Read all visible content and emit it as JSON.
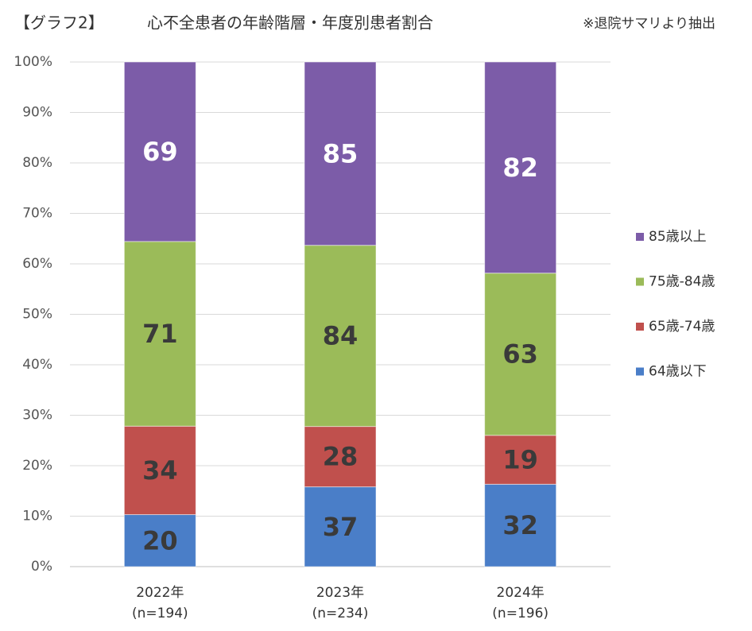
{
  "chart_data": {
    "type": "bar",
    "stacked_percent": true,
    "title_tag": "【グラフ2】",
    "title": "心不全患者の年齢階層・年度別患者割合",
    "note": "※退院サマリより抽出",
    "categories": [
      "2022年",
      "2023年",
      "2024年"
    ],
    "sample_sizes": [
      "(n=194)",
      "(n=234)",
      "(n=196)"
    ],
    "series": [
      {
        "name": "64歳以下",
        "color": "#4a7ec8",
        "label_color": "#3a3a3a",
        "values": [
          20,
          37,
          32
        ]
      },
      {
        "name": "65歳-74歳",
        "color": "#c0504d",
        "label_color": "#3a3a3a",
        "values": [
          34,
          28,
          19
        ]
      },
      {
        "name": "75歳-84歳",
        "color": "#9bbb59",
        "label_color": "#3a3a3a",
        "values": [
          71,
          84,
          63
        ]
      },
      {
        "name": "85歳以上",
        "color": "#7c5ca8",
        "label_color": "#ffffff",
        "values": [
          69,
          85,
          82
        ]
      }
    ],
    "ylim": [
      0,
      100
    ],
    "yticks": [
      {
        "value": 0,
        "label": "0%"
      },
      {
        "value": 10,
        "label": "10%"
      },
      {
        "value": 20,
        "label": "20%"
      },
      {
        "value": 30,
        "label": "30%"
      },
      {
        "value": 40,
        "label": "40%"
      },
      {
        "value": 50,
        "label": "50%"
      },
      {
        "value": 60,
        "label": "60%"
      },
      {
        "value": 70,
        "label": "70%"
      },
      {
        "value": 80,
        "label": "80%"
      },
      {
        "value": 90,
        "label": "90%"
      },
      {
        "value": 100,
        "label": "100%"
      }
    ],
    "grid": true,
    "legend": "right"
  }
}
